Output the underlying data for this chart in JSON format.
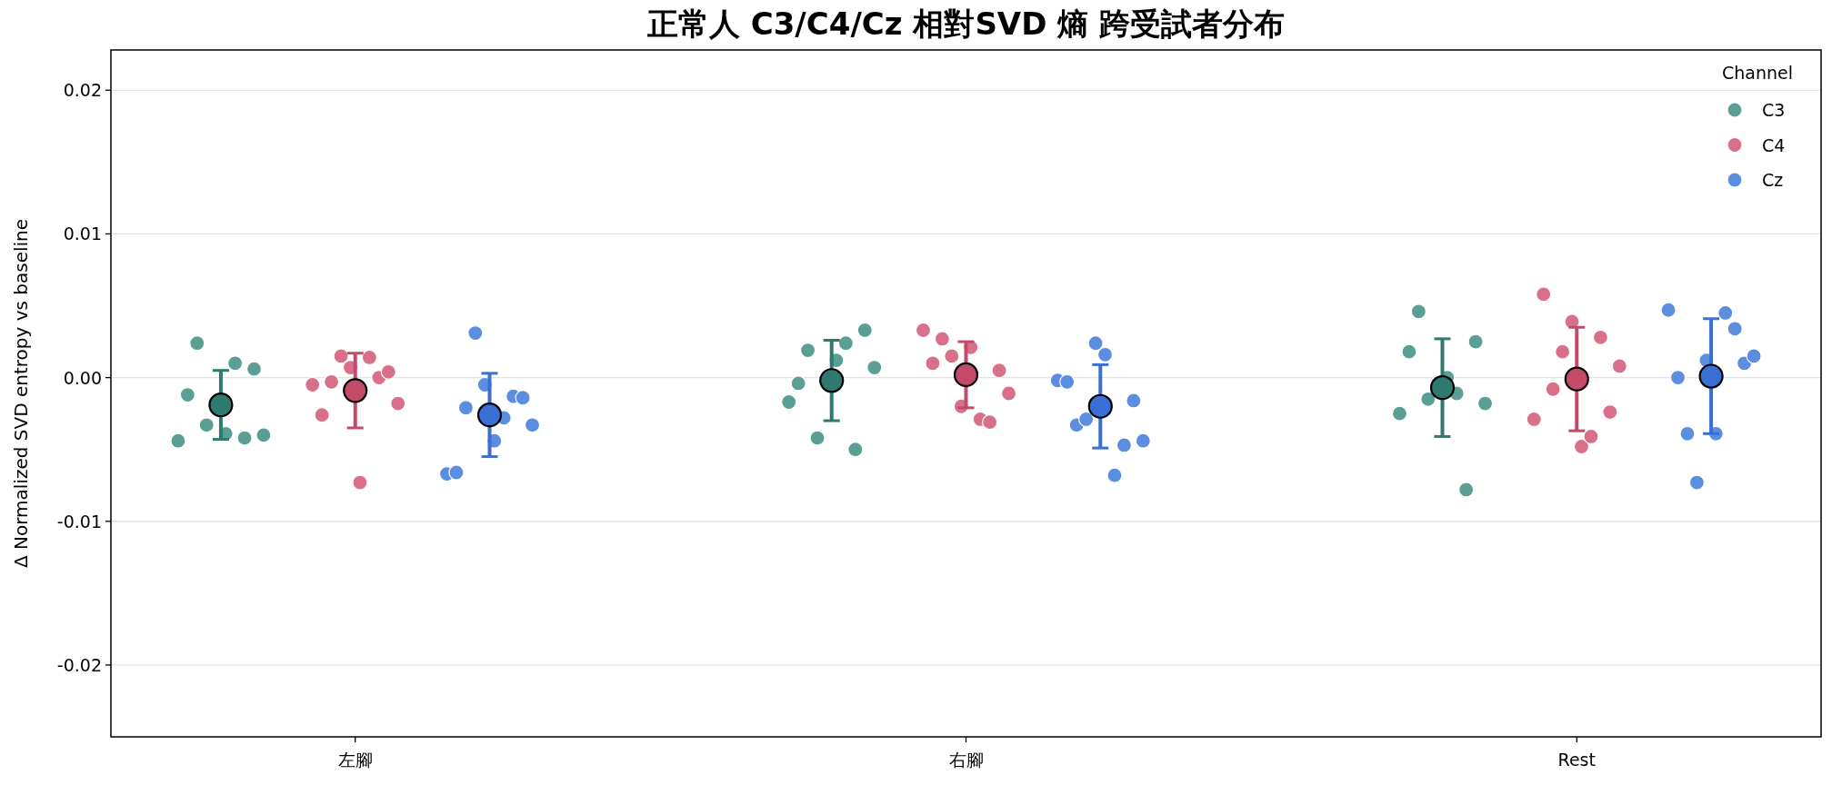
{
  "chart_data": {
    "type": "scatter",
    "title": "正常人 C3/C4/Cz 相對SVD 熵 跨受試者分布",
    "ylabel": "Δ Normalized SVD entropy vs baseline",
    "legend_title": "Channel",
    "categories": [
      "左腳",
      "右腳",
      "Rest"
    ],
    "ylim": [
      -0.025,
      0.0228
    ],
    "yticks": [
      -0.02,
      -0.01,
      {
        "value": 0,
        "label": "0.00"
      },
      0.01,
      0.02
    ],
    "grid": "y",
    "legend": "top right",
    "marker": "circle",
    "series": [
      {
        "name": "C3",
        "color": "#5a9e94",
        "x": [
          "左腳",
          "左腳",
          "左腳",
          "左腳",
          "左腳",
          "左腳",
          "左腳",
          "左腳",
          "左腳",
          "右腳",
          "右腳",
          "右腳",
          "右腳",
          "右腳",
          "右腳",
          "右腳",
          "右腳",
          "右腳",
          "Rest",
          "Rest",
          "Rest",
          "Rest",
          "Rest",
          "Rest",
          "Rest",
          "Rest",
          "Rest"
        ],
        "values": [
          -0.0044,
          -0.0012,
          0.0024,
          -0.0033,
          -0.0039,
          0.001,
          -0.0042,
          0.0006,
          -0.004,
          -0.0017,
          -0.0004,
          0.0019,
          -0.0042,
          0.0012,
          0.0024,
          -0.005,
          0.0033,
          0.0007,
          -0.0025,
          0.0018,
          0.0046,
          -0.0015,
          0.0,
          -0.0011,
          -0.0078,
          0.0025,
          -0.0018
        ]
      },
      {
        "name": "C4",
        "color": "#d9708a",
        "x": [
          "左腳",
          "左腳",
          "左腳",
          "左腳",
          "左腳",
          "左腳",
          "左腳",
          "左腳",
          "左腳",
          "左腳",
          "右腳",
          "右腳",
          "右腳",
          "右腳",
          "右腳",
          "右腳",
          "右腳",
          "右腳",
          "右腳",
          "右腳",
          "Rest",
          "Rest",
          "Rest",
          "Rest",
          "Rest",
          "Rest",
          "Rest",
          "Rest",
          "Rest",
          "Rest"
        ],
        "values": [
          -0.0005,
          -0.0026,
          -0.0003,
          0.0015,
          0.0007,
          -0.0073,
          0.0014,
          0.0,
          0.0004,
          -0.0018,
          0.0033,
          0.001,
          0.0027,
          0.0015,
          -0.002,
          0.0021,
          -0.0029,
          -0.0031,
          0.0005,
          -0.0011,
          -0.0029,
          0.0058,
          -0.0008,
          0.0018,
          0.0039,
          -0.0048,
          -0.0041,
          0.0028,
          -0.0024,
          0.0008
        ]
      },
      {
        "name": "Cz",
        "color": "#5b8de0",
        "x": [
          "左腳",
          "左腳",
          "左腳",
          "左腳",
          "左腳",
          "左腳",
          "左腳",
          "左腳",
          "左腳",
          "左腳",
          "右腳",
          "右腳",
          "右腳",
          "右腳",
          "右腳",
          "右腳",
          "右腳",
          "右腳",
          "右腳",
          "右腳",
          "Rest",
          "Rest",
          "Rest",
          "Rest",
          "Rest",
          "Rest",
          "Rest",
          "Rest",
          "Rest",
          "Rest"
        ],
        "values": [
          -0.0067,
          -0.0066,
          -0.0021,
          0.0031,
          -0.0005,
          -0.0044,
          -0.0028,
          -0.0013,
          -0.0014,
          -0.0033,
          -0.0002,
          -0.0003,
          -0.0033,
          -0.0029,
          0.0024,
          0.0016,
          -0.0068,
          -0.0047,
          -0.0016,
          -0.0044,
          0.0047,
          0.0,
          -0.0039,
          -0.0073,
          0.0012,
          -0.0039,
          0.0045,
          0.0034,
          0.001,
          0.0015
        ]
      },
      {
        "color": "#2e7a6e",
        "values": [
          -0.0019,
          -0.0002,
          -0.0007
        ],
        "errors": [
          0.0024,
          0.0028,
          0.0034
        ]
      },
      {
        "color": "#c44a6a",
        "values": [
          -0.0009,
          0.0002,
          -0.0001
        ],
        "errors": [
          0.0026,
          0.0023,
          0.0036
        ]
      },
      {
        "color": "#3a6fd6",
        "values": [
          -0.0026,
          -0.002,
          0.0001
        ],
        "errors": [
          0.0029,
          0.0029,
          0.004
        ]
      }
    ]
  }
}
